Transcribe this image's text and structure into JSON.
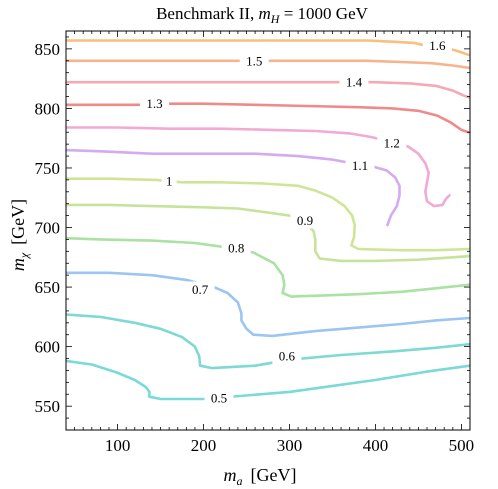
{
  "chart_data": {
    "type": "contour",
    "title": "Benchmark II, $m_H$ = 1000 GeV",
    "title_parts": {
      "prefix": "Benchmark II, ",
      "var": "m",
      "sub": "H",
      "suffix": " = 1000 GeV"
    },
    "xlabel": {
      "var": "m",
      "sub": "a",
      "unit": "[GeV]"
    },
    "ylabel": {
      "var": "m",
      "sub": "χ",
      "unit": "[GeV]"
    },
    "xlim": [
      40,
      510
    ],
    "ylim": [
      530,
      865
    ],
    "xticks": [
      100,
      200,
      300,
      400,
      500
    ],
    "xtick_labels": [
      "100",
      "200",
      "300",
      "400",
      "500"
    ],
    "yticks": [
      550,
      600,
      650,
      700,
      750,
      800,
      850
    ],
    "ytick_labels": [
      "550",
      "600",
      "650",
      "700",
      "750",
      "800",
      "850"
    ],
    "contours": [
      {
        "level": "0.5",
        "color": "#7ad9d9",
        "label_at": [
          218,
          557
        ],
        "points": [
          [
            40,
            588
          ],
          [
            70,
            585
          ],
          [
            100,
            578
          ],
          [
            120,
            572
          ],
          [
            133,
            566
          ],
          [
            137,
            562
          ],
          [
            137,
            558
          ],
          [
            150,
            556
          ],
          [
            200,
            556
          ],
          [
            300,
            562
          ],
          [
            400,
            572
          ],
          [
            460,
            579
          ],
          [
            510,
            584
          ]
        ]
      },
      {
        "level": "0.6",
        "color": "#7dd9d3",
        "label_at": [
          297,
          592
        ],
        "points": [
          [
            40,
            627
          ],
          [
            80,
            625
          ],
          [
            120,
            620
          ],
          [
            150,
            615
          ],
          [
            175,
            608
          ],
          [
            190,
            600
          ],
          [
            195,
            592
          ],
          [
            196,
            584
          ],
          [
            210,
            582
          ],
          [
            260,
            584
          ],
          [
            300,
            589
          ],
          [
            360,
            593
          ],
          [
            420,
            596
          ],
          [
            470,
            599
          ],
          [
            510,
            602
          ]
        ]
      },
      {
        "level": "0.7",
        "color": "#9cc5f2",
        "label_at": [
          196,
          648
        ],
        "points": [
          [
            40,
            662
          ],
          [
            90,
            662
          ],
          [
            140,
            660
          ],
          [
            180,
            656
          ],
          [
            212,
            650
          ],
          [
            228,
            645
          ],
          [
            240,
            637
          ],
          [
            244,
            628
          ],
          [
            244,
            622
          ],
          [
            250,
            615
          ],
          [
            258,
            610
          ],
          [
            280,
            609
          ],
          [
            330,
            613
          ],
          [
            380,
            616
          ],
          [
            430,
            619
          ],
          [
            470,
            622
          ],
          [
            510,
            624
          ]
        ]
      },
      {
        "level": "0.8",
        "color": "#a9e2a2",
        "label_at": [
          238,
          683
        ],
        "points": [
          [
            40,
            691
          ],
          [
            80,
            690
          ],
          [
            140,
            689
          ],
          [
            190,
            687
          ],
          [
            220,
            684
          ],
          [
            258,
            679
          ],
          [
            282,
            670
          ],
          [
            292,
            660
          ],
          [
            294,
            652
          ],
          [
            292,
            645
          ],
          [
            302,
            642
          ],
          [
            340,
            643
          ],
          [
            380,
            644
          ],
          [
            430,
            646
          ],
          [
            470,
            649
          ],
          [
            510,
            652
          ]
        ]
      },
      {
        "level": "0.9",
        "color": "#c6e39c",
        "label_at": [
          318,
          706
        ],
        "points": [
          [
            40,
            719
          ],
          [
            90,
            719
          ],
          [
            140,
            718
          ],
          [
            200,
            717
          ],
          [
            240,
            716
          ],
          [
            270,
            713
          ],
          [
            300,
            710
          ],
          [
            320,
            703
          ],
          [
            328,
            697
          ],
          [
            330,
            690
          ],
          [
            330,
            680
          ],
          [
            335,
            674
          ],
          [
            360,
            672
          ],
          [
            400,
            672
          ],
          [
            450,
            673
          ],
          [
            490,
            675
          ],
          [
            510,
            676
          ]
        ]
      },
      {
        "level": "1",
        "color": "#cfe596",
        "label_at": [
          160,
          739
        ],
        "points": [
          [
            40,
            741
          ],
          [
            90,
            741
          ],
          [
            145,
            740
          ],
          [
            175,
            738
          ],
          [
            220,
            738
          ],
          [
            270,
            737
          ],
          [
            310,
            735
          ],
          [
            330,
            731
          ],
          [
            350,
            725
          ],
          [
            364,
            718
          ],
          [
            373,
            710
          ],
          [
            376,
            702
          ],
          [
            375,
            692
          ],
          [
            372,
            685
          ],
          [
            380,
            682
          ],
          [
            430,
            681
          ],
          [
            470,
            681
          ],
          [
            510,
            682
          ]
        ]
      },
      {
        "level": "1.1",
        "color": "#d4aaf0",
        "label_at": [
          382,
          752
        ],
        "points": [
          [
            40,
            765
          ],
          [
            80,
            764
          ],
          [
            140,
            762
          ],
          [
            200,
            762
          ],
          [
            260,
            762
          ],
          [
            310,
            760
          ],
          [
            350,
            757
          ],
          [
            365,
            755
          ],
          [
            398,
            751
          ],
          [
            413,
            748
          ],
          [
            423,
            742
          ],
          [
            428,
            735
          ],
          [
            428,
            727
          ],
          [
            425,
            718
          ],
          [
            418,
            710
          ],
          [
            414,
            702
          ]
        ]
      },
      {
        "level": "1.2",
        "color": "#f2aad5",
        "label_at": [
          419,
          771
        ],
        "points": [
          [
            40,
            784
          ],
          [
            100,
            784
          ],
          [
            160,
            783
          ],
          [
            220,
            783
          ],
          [
            280,
            782
          ],
          [
            330,
            781
          ],
          [
            370,
            779
          ],
          [
            395,
            776
          ],
          [
            438,
            768
          ],
          [
            450,
            762
          ],
          [
            458,
            754
          ],
          [
            462,
            746
          ],
          [
            460,
            738
          ],
          [
            458,
            730
          ],
          [
            460,
            722
          ],
          [
            468,
            718
          ],
          [
            478,
            719
          ],
          [
            482,
            724
          ],
          [
            486,
            727
          ]
        ]
      },
      {
        "level": "1.3",
        "color": "#f08a8a",
        "label_at": [
          143,
          804
        ],
        "points": [
          [
            40,
            803
          ],
          [
            124,
            803
          ],
          [
            162,
            804
          ],
          [
            200,
            804
          ],
          [
            260,
            803
          ],
          [
            320,
            802
          ],
          [
            380,
            801
          ],
          [
            420,
            800
          ],
          [
            450,
            798
          ],
          [
            472,
            794
          ],
          [
            488,
            788
          ],
          [
            500,
            782
          ],
          [
            508,
            780
          ]
        ]
      },
      {
        "level": "1.4",
        "color": "#f5a9b0",
        "label_at": [
          375,
          822
        ],
        "points": [
          [
            40,
            822
          ],
          [
            100,
            822
          ],
          [
            160,
            822
          ],
          [
            220,
            822
          ],
          [
            270,
            822
          ],
          [
            320,
            822
          ],
          [
            365,
            822
          ],
          [
            400,
            822
          ],
          [
            440,
            821
          ],
          [
            470,
            819
          ],
          [
            490,
            815
          ],
          [
            502,
            811
          ],
          [
            510,
            809
          ]
        ]
      },
      {
        "level": "1.5",
        "color": "#f6b48c",
        "label_at": [
          259,
          840
        ],
        "points": [
          [
            40,
            840
          ],
          [
            100,
            840
          ],
          [
            160,
            840
          ],
          [
            225,
            840
          ],
          [
            245,
            840
          ],
          [
            290,
            840
          ],
          [
            340,
            840
          ],
          [
            390,
            840
          ],
          [
            430,
            839
          ],
          [
            465,
            838
          ],
          [
            490,
            836
          ],
          [
            510,
            834
          ]
        ]
      },
      {
        "level": "1.6",
        "color": "#f8bf7f",
        "label_at": [
          472,
          853
        ],
        "points": [
          [
            40,
            857
          ],
          [
            100,
            857
          ],
          [
            160,
            857
          ],
          [
            220,
            857
          ],
          [
            280,
            857
          ],
          [
            340,
            857
          ],
          [
            390,
            857
          ],
          [
            420,
            856
          ],
          [
            445,
            855
          ],
          [
            457,
            853
          ],
          [
            480,
            851
          ],
          [
            492,
            849
          ],
          [
            500,
            847
          ],
          [
            508,
            845
          ]
        ]
      }
    ]
  }
}
